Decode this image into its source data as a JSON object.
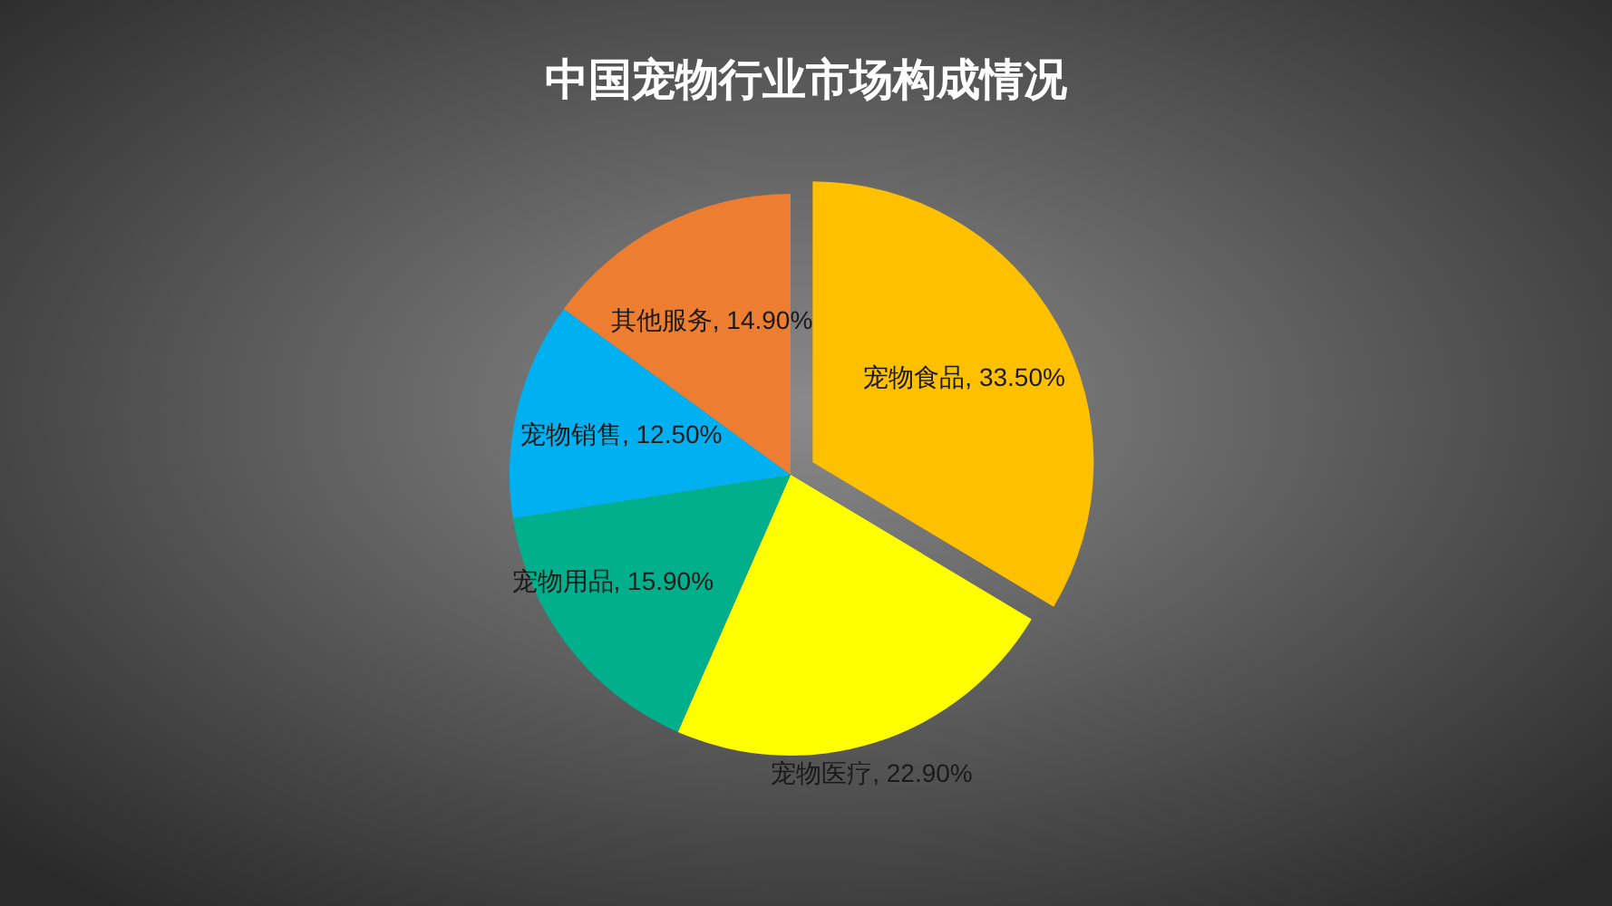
{
  "chart_data": {
    "type": "pie",
    "title": "中国宠物行业市场构成情况",
    "categories": [
      "宠物食品",
      "宠物医疗",
      "宠物用品",
      "宠物销售",
      "其他服务"
    ],
    "values": [
      33.5,
      22.9,
      15.9,
      12.5,
      14.9
    ],
    "colors": [
      "#ffc000",
      "#ffff00",
      "#00b08c",
      "#00b0f0",
      "#ed7d31"
    ],
    "value_labels": [
      "33.50%",
      "22.90%",
      "15.90%",
      "12.50%",
      "14.90%"
    ]
  }
}
